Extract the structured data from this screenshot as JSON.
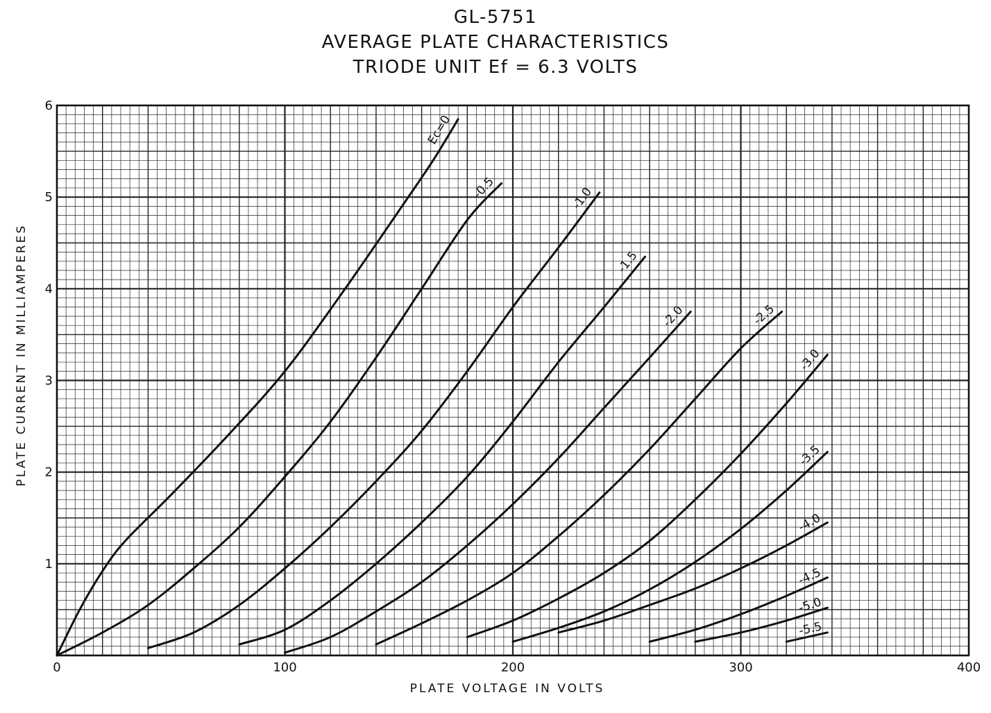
{
  "chart_data": {
    "type": "line",
    "title": "GL-5751",
    "subtitle": "AVERAGE PLATE CHARACTERISTICS",
    "subtitle2": "TRIODE UNIT Ef = 6.3 VOLTS",
    "xlabel": "PLATE VOLTAGE IN VOLTS",
    "ylabel": "PLATE CURRENT IN MILLIAMPERES",
    "xlim": [
      0,
      400
    ],
    "ylim": [
      0,
      6
    ],
    "xticks": [
      "0",
      "100",
      "200",
      "300",
      "400"
    ],
    "yticks": [
      "1",
      "2",
      "3",
      "4",
      "5",
      "6"
    ],
    "grid": true,
    "series": [
      {
        "name": "Ec=0",
        "label": "Ec=0",
        "x": [
          0,
          10,
          20,
          30,
          50,
          75,
          100,
          125,
          150,
          165,
          176
        ],
        "y": [
          0,
          0.5,
          0.92,
          1.25,
          1.75,
          2.4,
          3.1,
          3.95,
          4.85,
          5.4,
          5.85
        ]
      },
      {
        "name": "-0.5",
        "label": "-0.5",
        "x": [
          0,
          20,
          40,
          60,
          80,
          100,
          120,
          140,
          160,
          180,
          195
        ],
        "y": [
          0,
          0.25,
          0.55,
          0.95,
          1.4,
          1.95,
          2.55,
          3.25,
          4.0,
          4.75,
          5.15
        ]
      },
      {
        "name": "-1.0",
        "label": "-1.0",
        "x": [
          40,
          60,
          80,
          100,
          120,
          140,
          160,
          180,
          200,
          220,
          238
        ],
        "y": [
          0.08,
          0.25,
          0.55,
          0.95,
          1.4,
          1.9,
          2.45,
          3.1,
          3.8,
          4.45,
          5.05
        ]
      },
      {
        "name": "-1.5",
        "label": "-1.5",
        "x": [
          80,
          100,
          120,
          140,
          160,
          180,
          200,
          220,
          240,
          258
        ],
        "y": [
          0.12,
          0.28,
          0.6,
          1.0,
          1.45,
          1.95,
          2.55,
          3.2,
          3.8,
          4.35
        ]
      },
      {
        "name": "-2.0",
        "label": "-2.0",
        "x": [
          100,
          120,
          140,
          160,
          180,
          200,
          220,
          240,
          260,
          278
        ],
        "y": [
          0.03,
          0.2,
          0.48,
          0.8,
          1.2,
          1.65,
          2.15,
          2.7,
          3.25,
          3.75
        ]
      },
      {
        "name": "-2.5",
        "label": "-2.5",
        "x": [
          140,
          160,
          180,
          200,
          220,
          240,
          260,
          280,
          300,
          318
        ],
        "y": [
          0.12,
          0.35,
          0.6,
          0.9,
          1.3,
          1.75,
          2.25,
          2.8,
          3.35,
          3.75
        ]
      },
      {
        "name": "-3.0",
        "label": "-3.0",
        "x": [
          180,
          200,
          220,
          240,
          260,
          280,
          300,
          320,
          338
        ],
        "y": [
          0.2,
          0.38,
          0.62,
          0.9,
          1.25,
          1.7,
          2.2,
          2.75,
          3.28
        ]
      },
      {
        "name": "-3.5",
        "label": "-3.5",
        "x": [
          200,
          220,
          240,
          260,
          280,
          300,
          320,
          338
        ],
        "y": [
          0.15,
          0.3,
          0.48,
          0.72,
          1.02,
          1.38,
          1.8,
          2.22
        ]
      },
      {
        "name": "-4.0",
        "label": "-4.0",
        "x": [
          220,
          240,
          260,
          280,
          300,
          320,
          338
        ],
        "y": [
          0.25,
          0.38,
          0.55,
          0.73,
          0.95,
          1.2,
          1.45
        ]
      },
      {
        "name": "-4.5",
        "label": "-4.5",
        "x": [
          260,
          280,
          300,
          320,
          338
        ],
        "y": [
          0.15,
          0.28,
          0.45,
          0.65,
          0.85
        ]
      },
      {
        "name": "-5.0",
        "label": "-5.0",
        "x": [
          280,
          300,
          320,
          338
        ],
        "y": [
          0.15,
          0.25,
          0.38,
          0.52
        ]
      },
      {
        "name": "-5.5",
        "label": "-5.5",
        "x": [
          320,
          338
        ],
        "y": [
          0.15,
          0.25
        ]
      }
    ]
  }
}
